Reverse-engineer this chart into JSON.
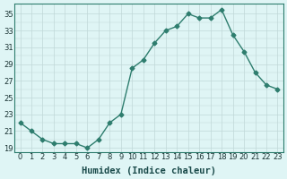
{
  "x": [
    0,
    1,
    2,
    3,
    4,
    5,
    6,
    7,
    8,
    9,
    10,
    11,
    12,
    13,
    14,
    15,
    16,
    17,
    18,
    19,
    20,
    21,
    22,
    23
  ],
  "y": [
    22,
    21,
    20,
    19.5,
    19.5,
    19.5,
    19,
    20,
    22,
    23,
    28.5,
    29.5,
    31.5,
    33,
    33.5,
    35,
    34.5,
    34.5,
    35.5,
    32.5,
    30.5,
    28,
    26.5,
    26
  ],
  "line_color": "#2e7d6e",
  "marker": "D",
  "marker_size": 2.5,
  "bg_color": "#dff5f5",
  "grid_color_major": "#c0d8d8",
  "xlabel": "Humidex (Indice chaleur)",
  "xlabel_fontsize": 7.5,
  "ytick_labels": [
    19,
    21,
    23,
    25,
    27,
    29,
    31,
    33,
    35
  ],
  "ylim": [
    18.5,
    36.2
  ],
  "xlim": [
    -0.5,
    23.5
  ],
  "xtick_labels": [
    "0",
    "1",
    "2",
    "3",
    "4",
    "5",
    "6",
    "7",
    "8",
    "9",
    "10",
    "11",
    "12",
    "13",
    "14",
    "15",
    "16",
    "17",
    "18",
    "19",
    "20",
    "21",
    "22",
    "23"
  ],
  "tick_fontsize": 6
}
